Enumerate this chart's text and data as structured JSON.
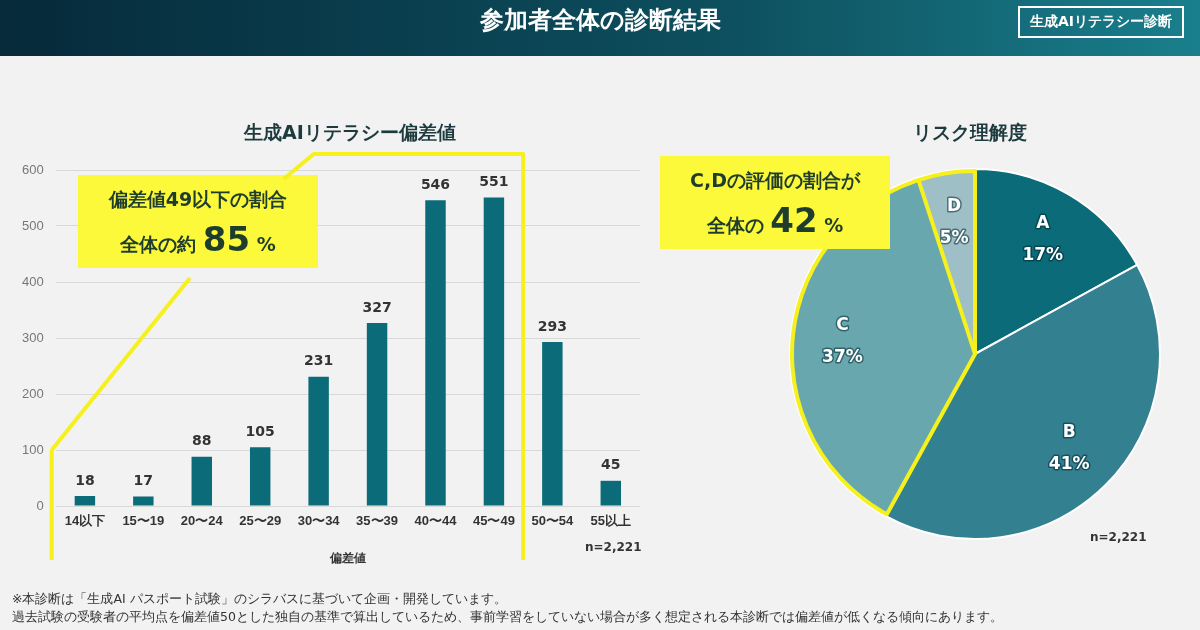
{
  "chart_data": [
    {
      "type": "bar",
      "title": "生成AIリテラシー偏差値",
      "xlabel": "偏差値",
      "categories": [
        "14以下",
        "15〜19",
        "20〜24",
        "25〜29",
        "30〜34",
        "35〜39",
        "40〜44",
        "45〜49",
        "50〜54",
        "55以上"
      ],
      "values": [
        18,
        17,
        88,
        105,
        231,
        327,
        546,
        551,
        293,
        45
      ],
      "color": "#0b6b78",
      "ylim": [
        0,
        600
      ],
      "yticks": [
        0,
        100,
        200,
        300,
        400,
        500,
        600
      ],
      "grid": "y",
      "legend": false,
      "data_labels": true,
      "annotations": [
        "偏差値49以下の割合",
        "全体の約 85 %",
        "n=2,221"
      ]
    },
    {
      "type": "pie",
      "title": "リスク理解度",
      "categories": [
        "A",
        "B",
        "C",
        "D"
      ],
      "values": [
        17,
        41,
        37,
        5
      ],
      "colors": [
        "#0b6b78",
        "#338190",
        "#68a7ae",
        "#9ebfc6"
      ],
      "legend": false,
      "value_labels": [
        "17%",
        "41%",
        "37%",
        "5%"
      ],
      "annotations": [
        "C,Dの評価の割合が",
        "全体の 42 %",
        "n=2,221"
      ]
    },
    {
      "type": "other",
      "title": "参加者全体の診断結果",
      "subtitle": "生成AIリテラシー診断",
      "annotations": [
        "※本診断は「生成AI パスポート試験」のシラバスに基づいて企画・開発しています。",
        "過去試験の受験者の平均点を偏差値50とした独自の基準で算出しているため、事前学習をしていない場合が多く想定される本診断では偏差値が低くなる傾向にあります。"
      ]
    }
  ]
}
